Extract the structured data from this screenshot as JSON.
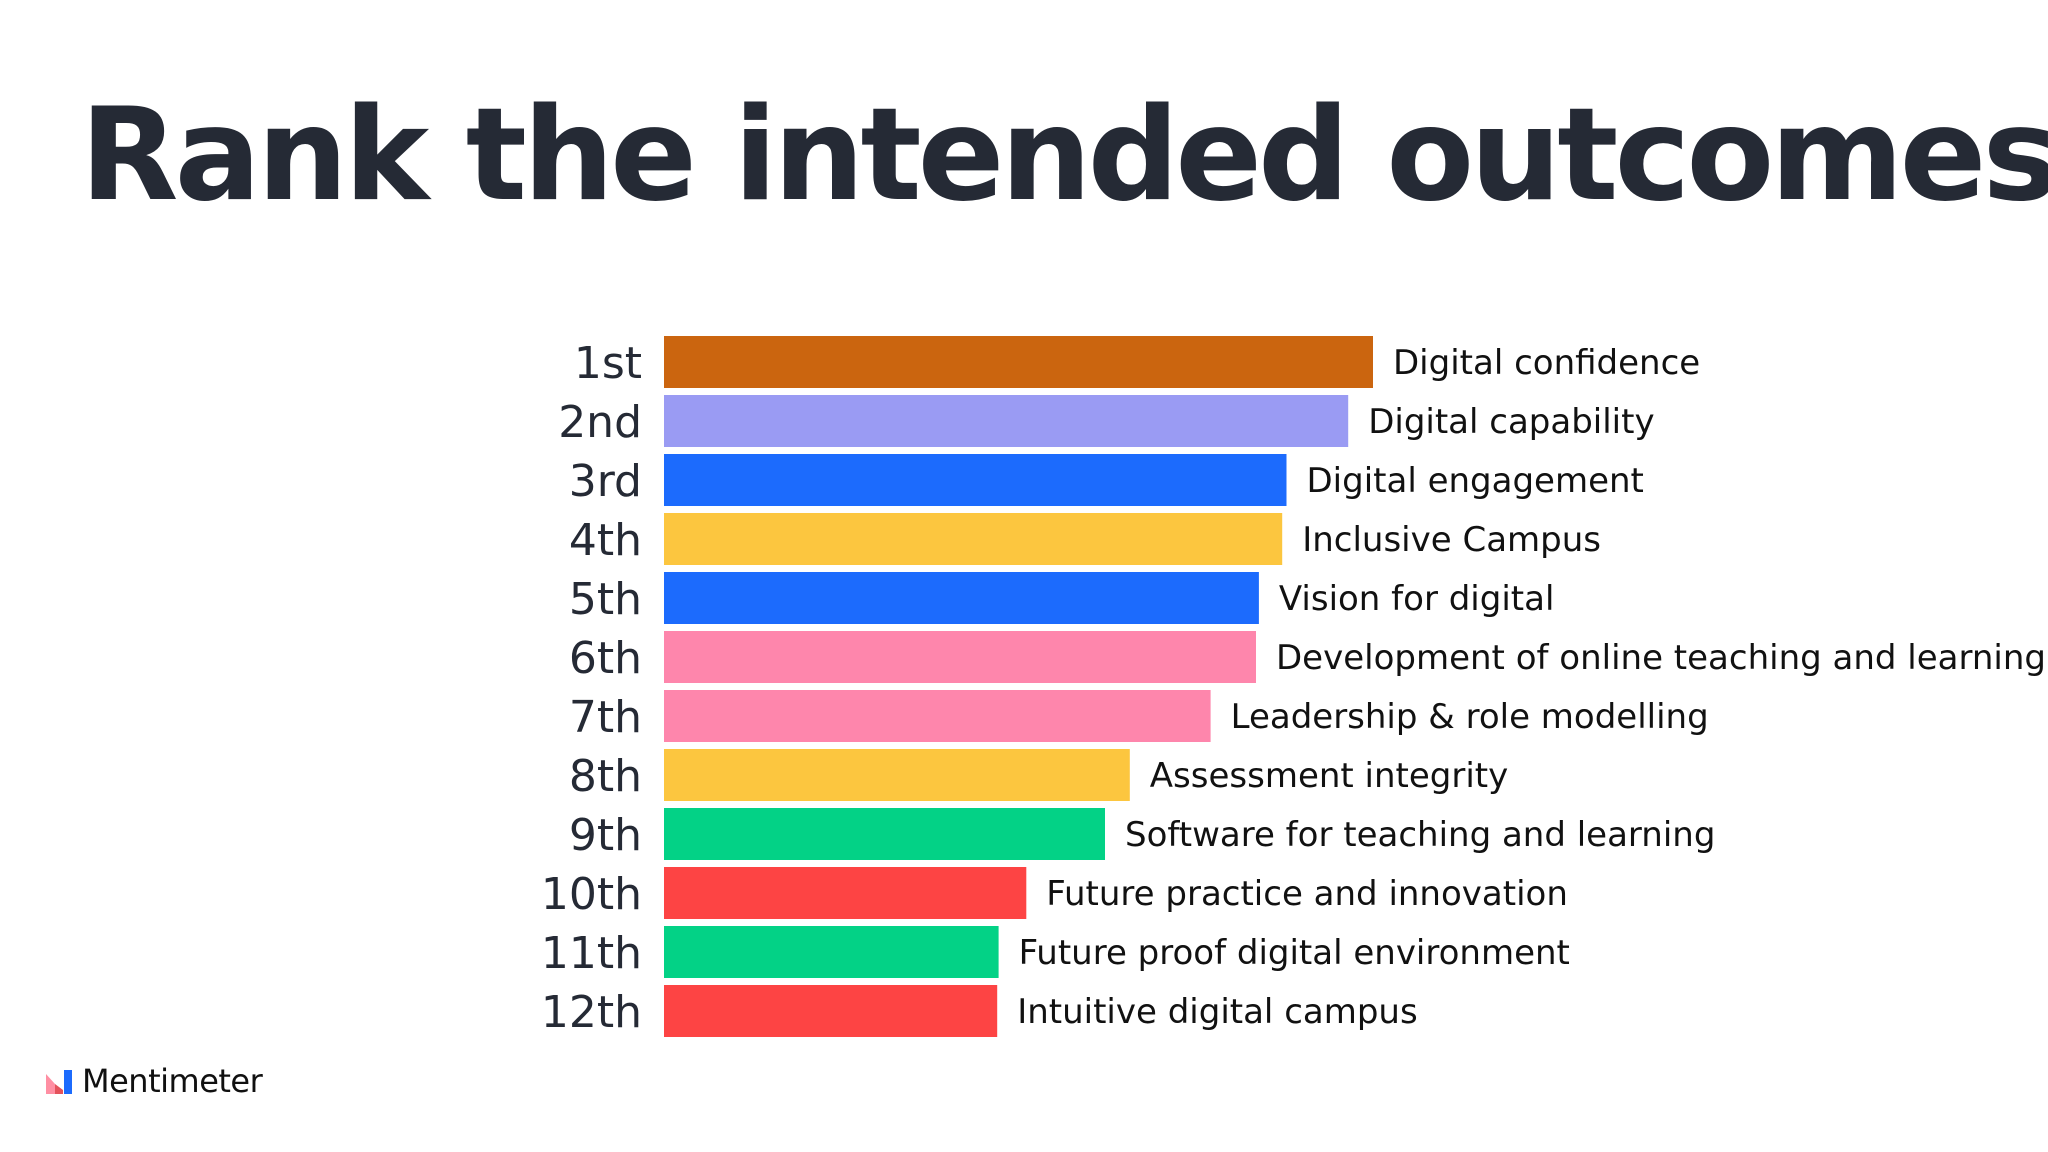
{
  "title": "Rank the intended outcomes",
  "brand": {
    "name": "Mentimeter",
    "logo_icon": "mentimeter-logo-icon"
  },
  "chart_data": {
    "type": "bar",
    "orientation": "horizontal",
    "ranks": [
      "1st",
      "2nd",
      "3rd",
      "4th",
      "5th",
      "6th",
      "7th",
      "8th",
      "9th",
      "10th",
      "11th",
      "12th"
    ],
    "categories": [
      "Digital confidence",
      "Digital capability",
      "Digital engagement",
      "Inclusive Campus",
      "Vision for digital",
      "Development of online teaching and learning",
      "Leadership & role modelling",
      "Assessment integrity",
      "Software for teaching and learning",
      "Future practice and innovation",
      "Future proof digital environment",
      "Intuitive digital campus"
    ],
    "values": [
      100,
      96.5,
      87.8,
      87.2,
      83.9,
      83.5,
      77.1,
      65.7,
      62.2,
      51.1,
      47.2,
      47.0
    ],
    "colors": [
      "#cb650f",
      "#9a9bf3",
      "#1c6bfd",
      "#fcc63f",
      "#1c6bfd",
      "#fe86ac",
      "#fe86ac",
      "#fcc63f",
      "#03d286",
      "#fd4444",
      "#03d286",
      "#fd4444"
    ],
    "xlim": [
      0,
      100
    ],
    "grid": false,
    "legend": "none"
  }
}
